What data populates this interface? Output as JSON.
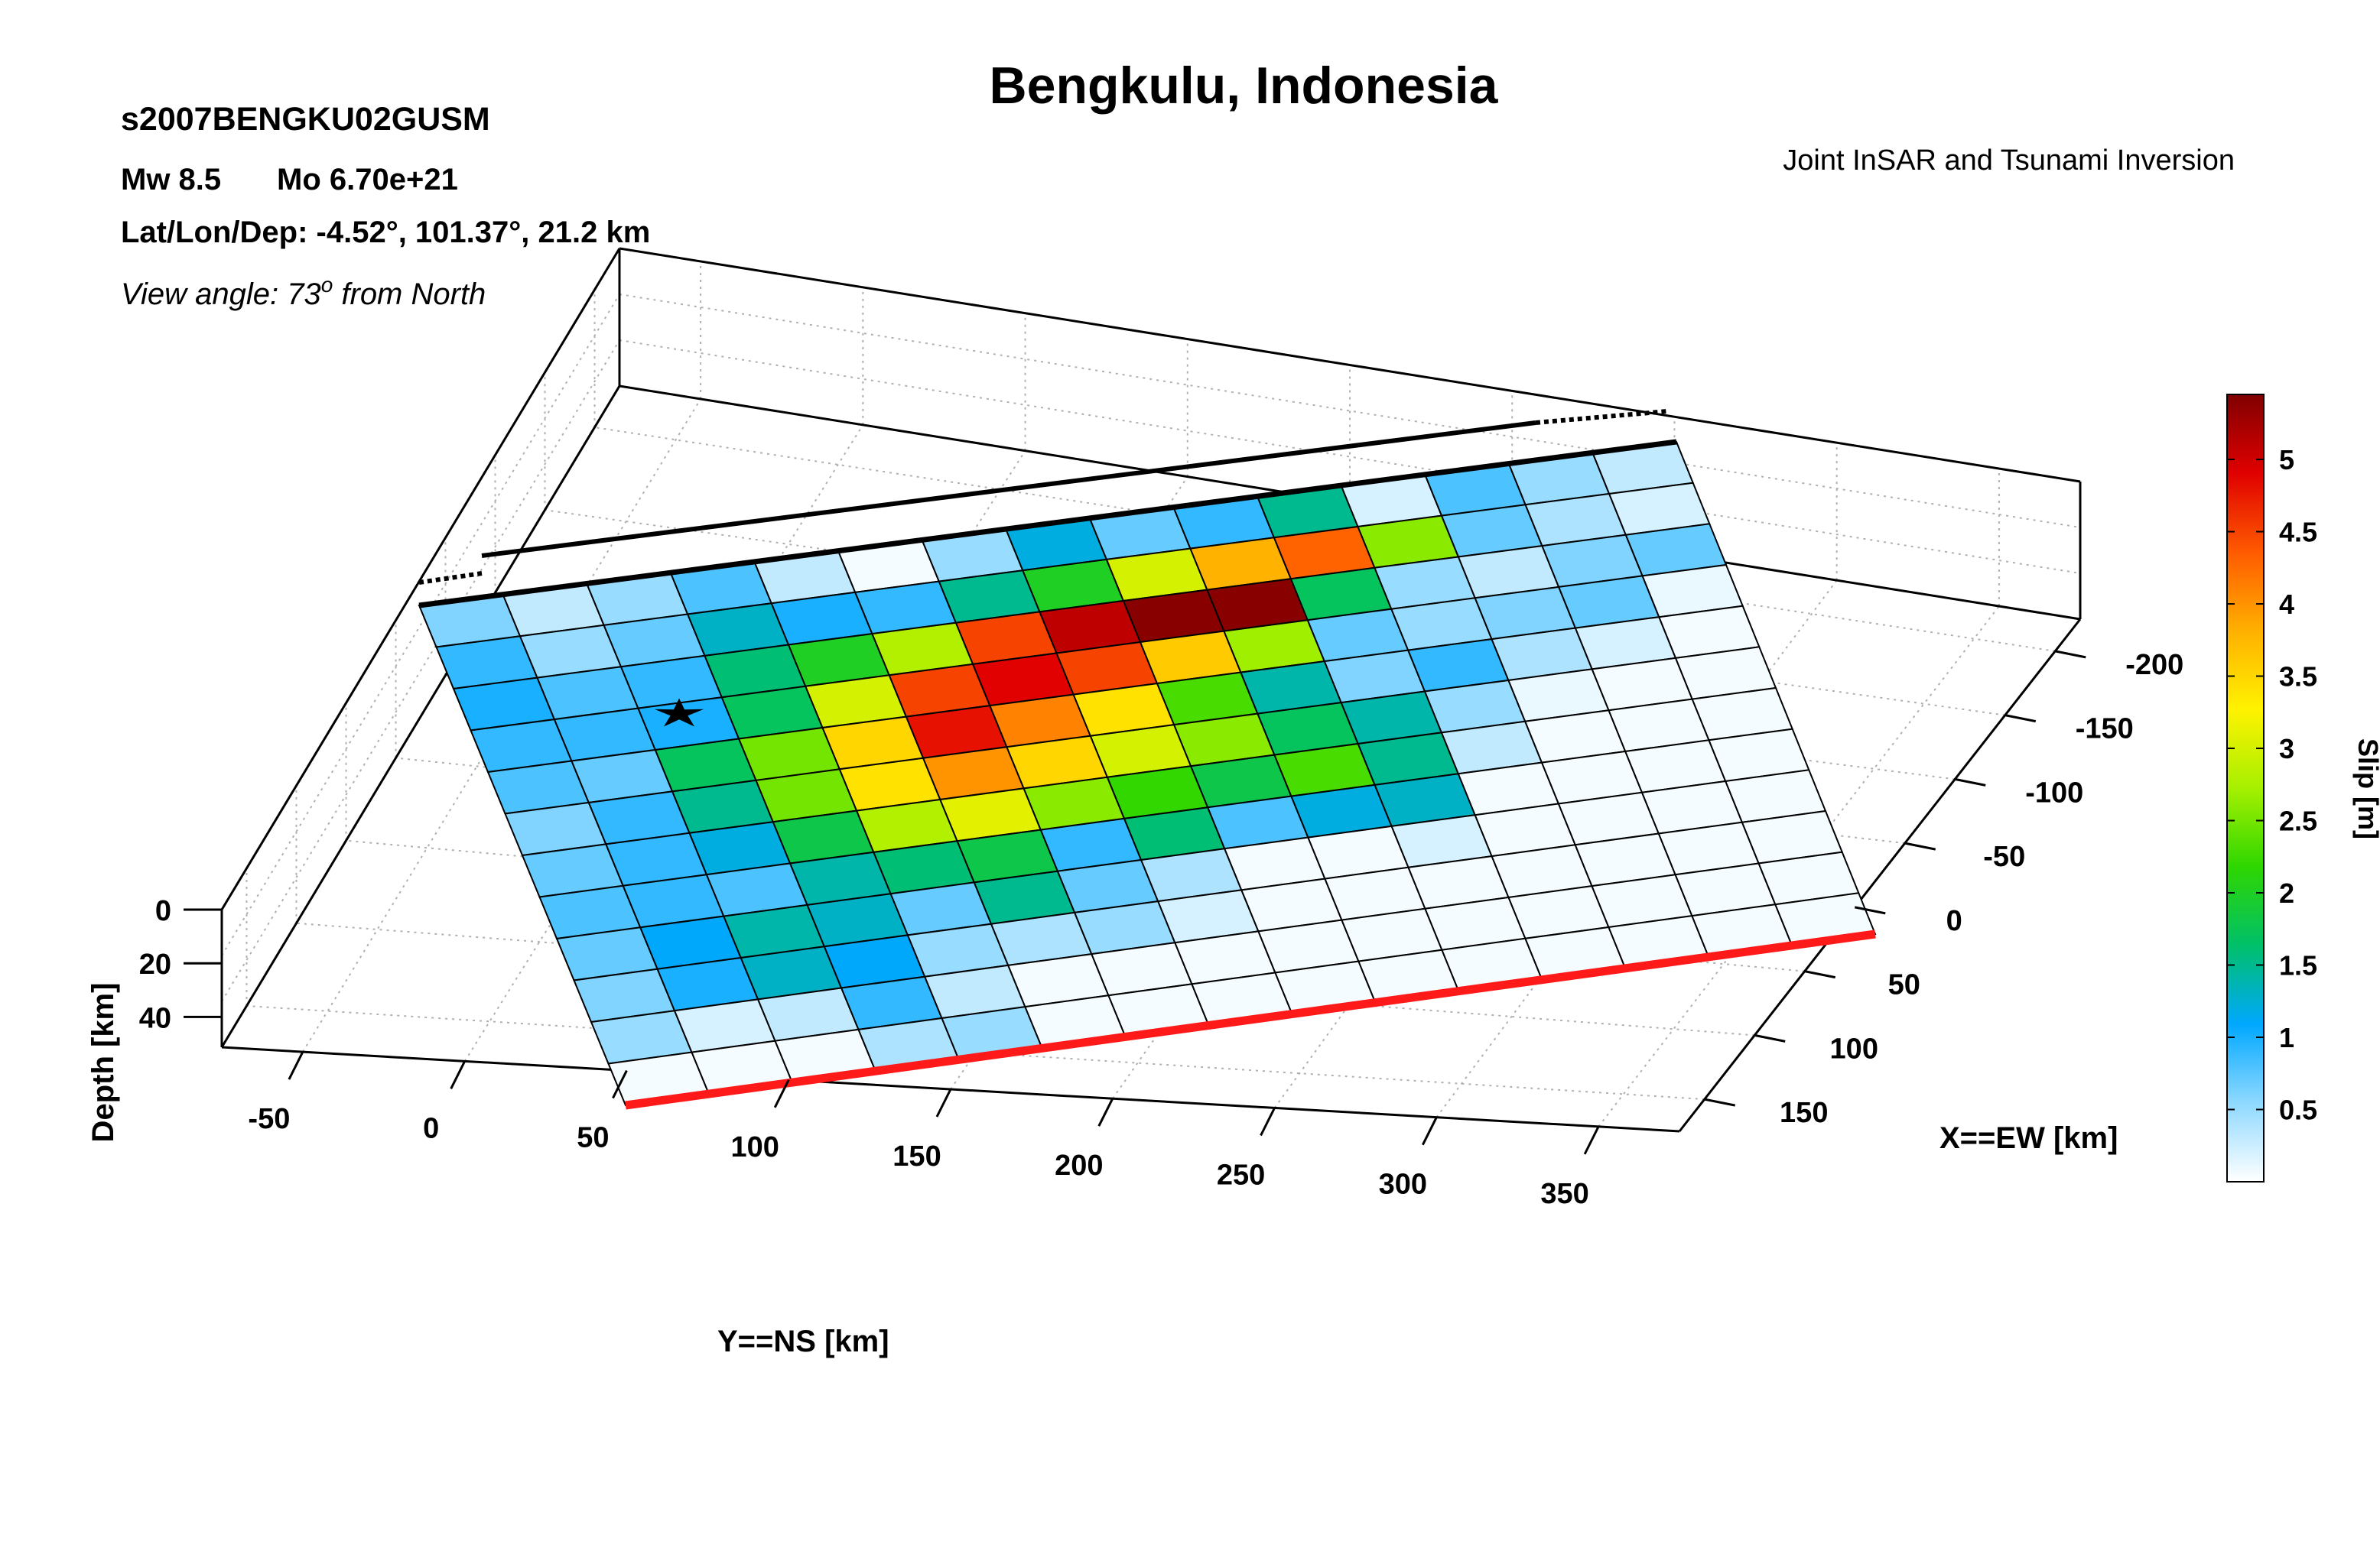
{
  "chart_data": {
    "type": "heatmap",
    "title": "Bengkulu, Indonesia",
    "subtitle": "Joint InSAR and Tsunami Inversion",
    "event_id": "s2007BENGKU02GUSM",
    "magnitude_line": {
      "mw": "Mw 8.5",
      "mo": "Mo 6.70e+21"
    },
    "location_line": "Lat/Lon/Dep: -4.52°, 101.37°, 21.2 km",
    "view_angle": {
      "prefix": "View angle:  73",
      "sup": "o",
      "suffix": " from North"
    },
    "xlabel": "X==EW [km]",
    "ylabel": "Y==NS [km]",
    "zlabel": "Depth [km]",
    "colorbar_label": "Slip [m]",
    "x_ticks": [
      "-200",
      "-150",
      "-100",
      "-50",
      "0",
      "50",
      "100",
      "150"
    ],
    "y_ticks": [
      "-50",
      "0",
      "50",
      "100",
      "150",
      "200",
      "250",
      "300",
      "350"
    ],
    "z_ticks": [
      "0",
      "20",
      "40"
    ],
    "colorbar_ticks": [
      "0.5",
      "1",
      "1.5",
      "2",
      "2.5",
      "3",
      "3.5",
      "4",
      "4.5",
      "5"
    ],
    "colorbar_range": [
      0,
      5.45
    ],
    "grid": true,
    "hypocenter_marker": "star",
    "trench_color": "#ff1a1a",
    "fault_top_color": "#000000",
    "colorbar_colors": [
      "#ffffff",
      "#8fd9ff",
      "#00a8ff",
      "#00c06a",
      "#2ed600",
      "#a6f000",
      "#fff200",
      "#ffb000",
      "#ff5a00",
      "#e00000",
      "#800000"
    ],
    "slip_grid": [
      [
        0.6,
        0.3,
        0.5,
        0.8,
        0.3,
        0.05,
        0.5,
        1.2,
        0.7,
        0.9,
        1.5,
        0.2,
        0.8,
        0.5,
        0.3
      ],
      [
        0.9,
        0.5,
        0.7,
        1.3,
        1.0,
        0.9,
        1.5,
        2.0,
        3.0,
        3.8,
        4.3,
        2.6,
        0.7,
        0.4,
        0.2
      ],
      [
        1.0,
        0.8,
        0.9,
        1.6,
        2.0,
        2.8,
        4.5,
        5.1,
        5.4,
        5.4,
        1.7,
        0.5,
        0.3,
        0.6,
        0.7
      ],
      [
        0.9,
        0.9,
        1.0,
        1.7,
        3.0,
        4.5,
        4.9,
        4.5,
        3.6,
        2.7,
        0.7,
        0.5,
        0.6,
        0.7,
        0.1
      ],
      [
        0.8,
        0.7,
        1.7,
        2.5,
        3.5,
        4.8,
        4.1,
        3.4,
        2.3,
        1.4,
        0.6,
        0.9,
        0.4,
        0.2,
        0.05
      ],
      [
        0.6,
        0.9,
        1.5,
        2.5,
        3.4,
        4.0,
        3.5,
        3.0,
        2.6,
        1.7,
        1.4,
        0.5,
        0.1,
        0.05,
        0.05
      ],
      [
        0.7,
        0.9,
        1.2,
        1.8,
        2.8,
        3.1,
        2.6,
        2.2,
        1.8,
        2.3,
        1.5,
        0.3,
        0.05,
        0.05,
        0.05
      ],
      [
        0.8,
        0.9,
        0.8,
        1.4,
        1.6,
        1.8,
        0.9,
        1.6,
        0.8,
        1.2,
        1.3,
        0.05,
        0.05,
        0.05,
        0.05
      ],
      [
        0.7,
        1.1,
        1.4,
        1.3,
        0.7,
        1.5,
        0.7,
        0.4,
        0.05,
        0.05,
        0.2,
        0.05,
        0.05,
        0.05,
        0.05
      ],
      [
        0.6,
        1.0,
        1.3,
        1.1,
        0.5,
        0.4,
        0.5,
        0.2,
        0.05,
        0.05,
        0.05,
        0.05,
        0.05,
        0.05,
        0.05
      ],
      [
        0.5,
        0.2,
        0.3,
        0.9,
        0.3,
        0.05,
        0.05,
        0.05,
        0.05,
        0.05,
        0.05,
        0.05,
        0.05,
        0.05,
        0.05
      ],
      [
        0.05,
        0.05,
        0.05,
        0.4,
        0.5,
        0.05,
        0.05,
        0.05,
        0.05,
        0.05,
        0.05,
        0.05,
        0.05,
        0.05,
        0.05
      ]
    ]
  }
}
